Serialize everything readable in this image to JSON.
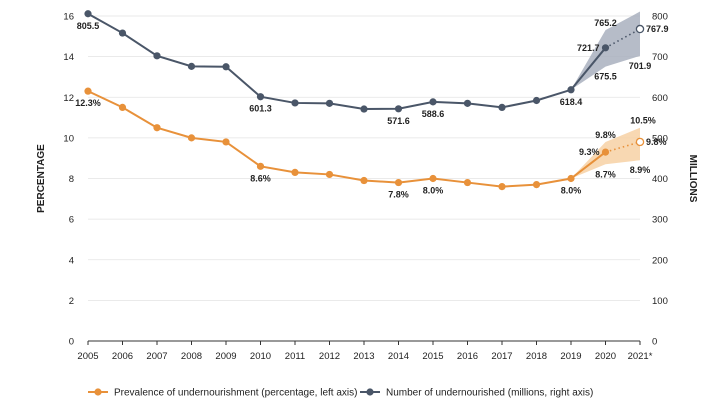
{
  "chart_data": {
    "type": "line",
    "x": [
      "2005",
      "2006",
      "2007",
      "2008",
      "2009",
      "2010",
      "2011",
      "2012",
      "2013",
      "2014",
      "2015",
      "2016",
      "2017",
      "2018",
      "2019",
      "2020",
      "2021*"
    ],
    "left_axis": {
      "label": "PERCENTAGE",
      "range": [
        0,
        16
      ],
      "ticks": [
        "0",
        "2",
        "4",
        "6",
        "8",
        "10",
        "12",
        "14",
        "16"
      ]
    },
    "right_axis": {
      "label": "MILLIONS",
      "range": [
        0,
        800
      ],
      "ticks": [
        "0",
        "100",
        "200",
        "300",
        "400",
        "500",
        "600",
        "700",
        "800"
      ]
    },
    "series": [
      {
        "name": "Prevalence of undernourishment (percentage, left axis)",
        "axis": "left",
        "color": "#E8913A",
        "band_color": "#F7D1A4",
        "values": [
          12.3,
          11.5,
          10.5,
          10.0,
          9.8,
          8.6,
          8.3,
          8.2,
          7.9,
          7.8,
          8.0,
          7.8,
          7.6,
          7.7,
          8.0,
          9.3,
          9.8
        ],
        "projection_range_2020": [
          8.7,
          9.8
        ],
        "projection_range_2021": [
          8.9,
          10.5
        ]
      },
      {
        "name": "Number of undernourished (millions, right axis)",
        "axis": "right",
        "color": "#4A5668",
        "band_color": "#A9B0BE",
        "values": [
          805.5,
          758,
          702,
          676,
          675,
          601.3,
          586,
          585,
          571,
          571.6,
          588.6,
          585,
          575,
          592,
          618.4,
          721.7,
          767.9
        ],
        "projection_range_2020": [
          675.5,
          765.2
        ],
        "projection_range_2021": [
          701.9,
          811
        ]
      }
    ],
    "data_labels": [
      {
        "text": "805.5",
        "series": 1,
        "i": 0,
        "pos": "below"
      },
      {
        "text": "601.3",
        "series": 1,
        "i": 5,
        "pos": "below"
      },
      {
        "text": "571.6",
        "series": 1,
        "i": 9,
        "pos": "below"
      },
      {
        "text": "588.6",
        "series": 1,
        "i": 10,
        "pos": "below"
      },
      {
        "text": "618.4",
        "series": 1,
        "i": 14,
        "pos": "below"
      },
      {
        "text": "765.2",
        "series": 1,
        "i": 15,
        "pos": "aboveband"
      },
      {
        "text": "721.7",
        "series": 1,
        "i": 15,
        "pos": "left"
      },
      {
        "text": "675.5",
        "series": 1,
        "i": 15,
        "pos": "belowband"
      },
      {
        "text": "767.9",
        "series": 1,
        "i": 16,
        "pos": "right"
      },
      {
        "text": "701.9",
        "series": 1,
        "i": 16,
        "pos": "belowband"
      },
      {
        "text": "12.3%",
        "series": 0,
        "i": 0,
        "pos": "below"
      },
      {
        "text": "8.6%",
        "series": 0,
        "i": 5,
        "pos": "below"
      },
      {
        "text": "7.8%",
        "series": 0,
        "i": 9,
        "pos": "below"
      },
      {
        "text": "8.0%",
        "series": 0,
        "i": 10,
        "pos": "below"
      },
      {
        "text": "8.0%",
        "series": 0,
        "i": 14,
        "pos": "below"
      },
      {
        "text": "9.8%",
        "series": 0,
        "i": 15,
        "pos": "aboveband"
      },
      {
        "text": "9.3%",
        "series": 0,
        "i": 15,
        "pos": "left"
      },
      {
        "text": "8.7%",
        "series": 0,
        "i": 15,
        "pos": "belowband"
      },
      {
        "text": "10.5%",
        "series": 0,
        "i": 16,
        "pos": "aboveband"
      },
      {
        "text": "9.8%",
        "series": 0,
        "i": 16,
        "pos": "right"
      },
      {
        "text": "8.9%",
        "series": 0,
        "i": 16,
        "pos": "belowband"
      }
    ],
    "legend": [
      "Prevalence of undernourishment (percentage, left axis)",
      "Number of undernourished (millions, right axis)"
    ],
    "legend_position": "bottom"
  }
}
